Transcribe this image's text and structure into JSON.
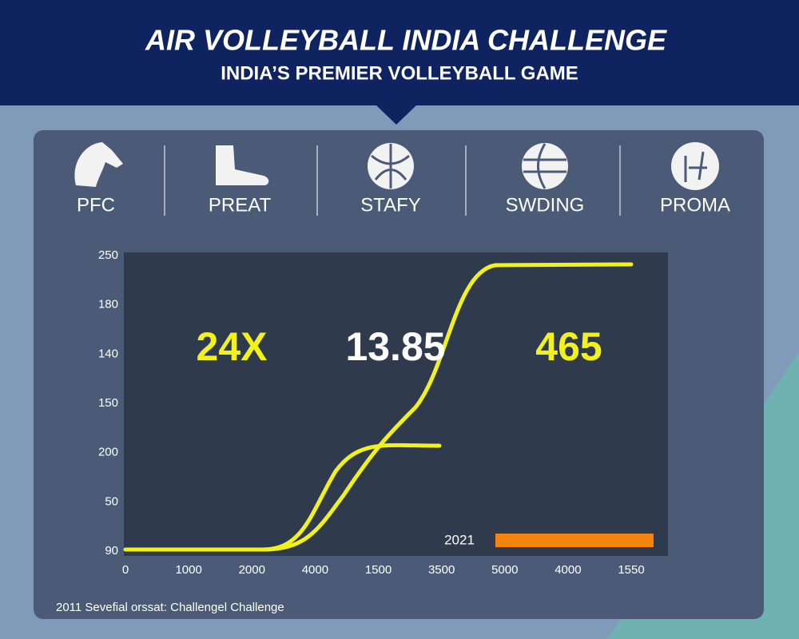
{
  "header": {
    "title": "AIR VOLLEYBALL INDIA CHALLENGE",
    "subtitle": "INDIA’S PREMIER VOLLEYBALL GAME"
  },
  "categories": [
    {
      "label": "PFC"
    },
    {
      "label": "PREAT"
    },
    {
      "label": "STAFY"
    },
    {
      "label": "SWDING"
    },
    {
      "label": "PROMA"
    }
  ],
  "panel": {
    "stats": [
      "24X",
      "13.85",
      "465"
    ],
    "y_axis_labels": [
      "250",
      "180",
      "140",
      "150",
      "200",
      "50",
      "90"
    ],
    "x_axis_labels": [
      "0",
      "1000",
      "2000",
      "4000",
      "1500",
      "3500",
      "5000",
      "4000",
      "1550"
    ],
    "legend_label": "2021",
    "footer": "2011 Sevefial orssat: Challengel Challenge"
  }
}
